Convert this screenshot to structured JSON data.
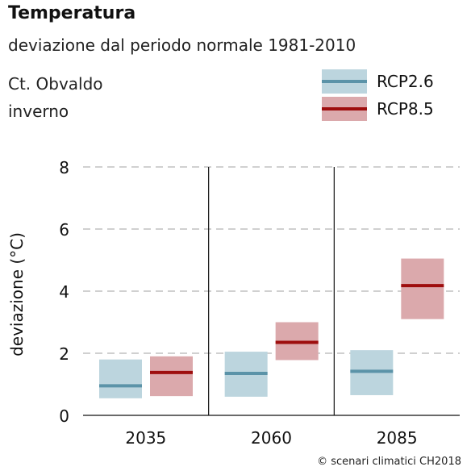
{
  "chart_data": {
    "type": "box",
    "title": "Temperatura",
    "subtitle": "deviazione dal periodo normale 1981-2010",
    "region": "Ct. Obvaldo",
    "season": "inverno",
    "ylabel": "deviazione (°C)",
    "ylim": [
      0,
      8
    ],
    "yticks": [
      0,
      2,
      4,
      6,
      8
    ],
    "grid": true,
    "legend_position": "top-right",
    "categories": [
      "2035",
      "2060",
      "2085"
    ],
    "series": [
      {
        "name": "RCP2.6",
        "line_color": "#5b93a8",
        "fill_color": "#bcd5de",
        "ranges": [
          {
            "low": 0.55,
            "median": 0.95,
            "high": 1.8
          },
          {
            "low": 0.6,
            "median": 1.35,
            "high": 2.05
          },
          {
            "low": 0.65,
            "median": 1.42,
            "high": 2.1
          }
        ]
      },
      {
        "name": "RCP8.5",
        "line_color": "#9e0e0e",
        "fill_color": "#dba9ac",
        "ranges": [
          {
            "low": 0.62,
            "median": 1.38,
            "high": 1.9
          },
          {
            "low": 1.78,
            "median": 2.35,
            "high": 3.0
          },
          {
            "low": 3.1,
            "median": 4.18,
            "high": 5.05
          }
        ]
      }
    ],
    "credit": "© scenari climatici CH2018"
  }
}
